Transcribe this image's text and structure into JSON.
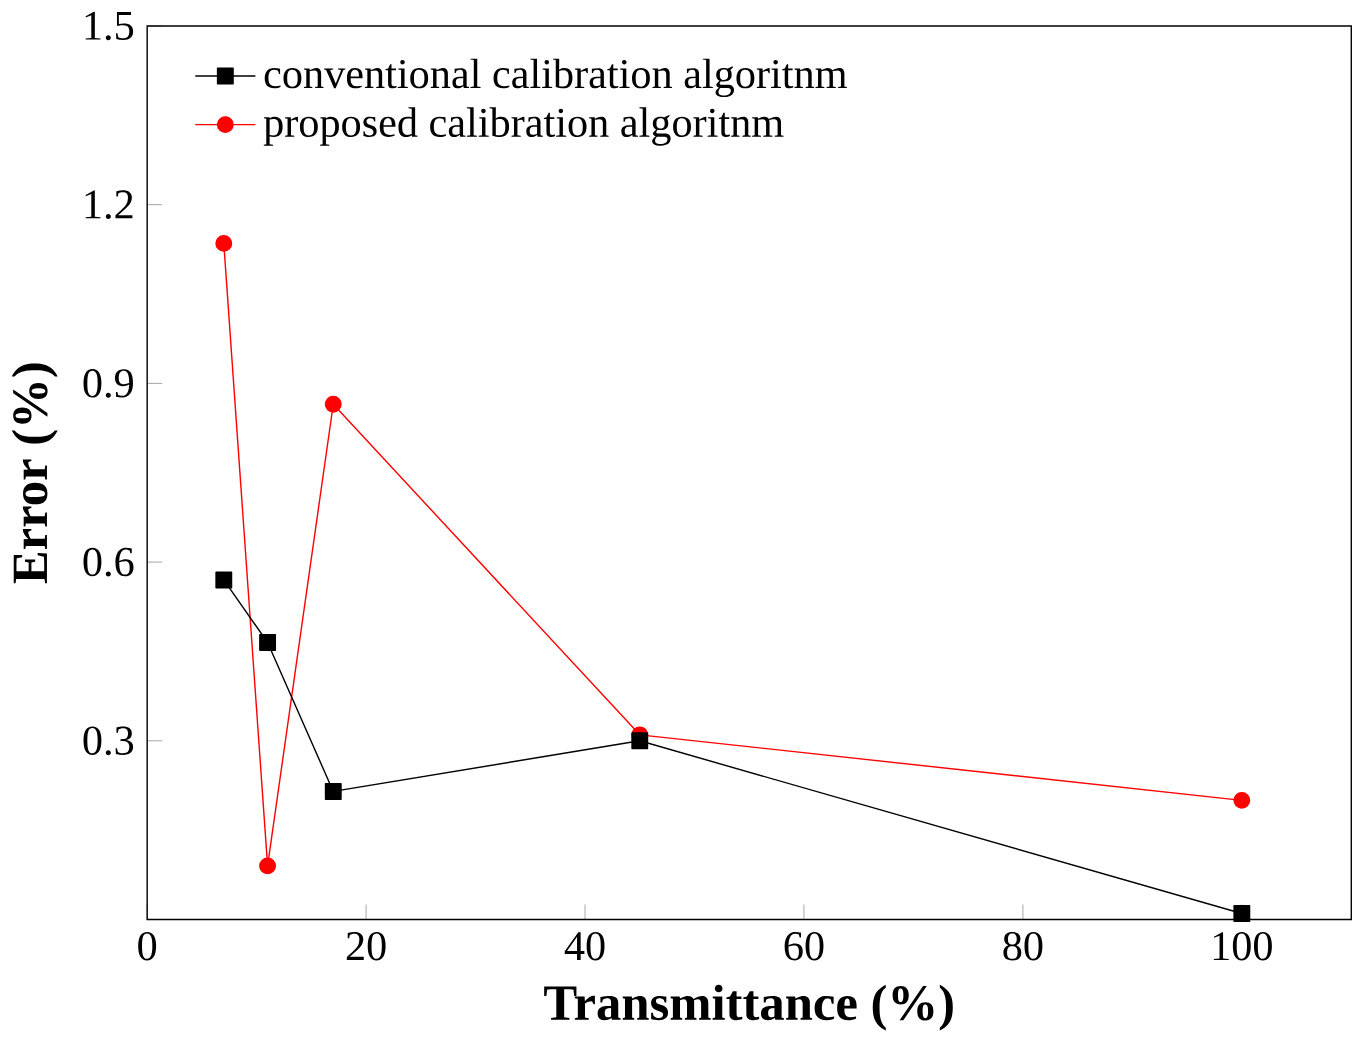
{
  "chart_data": {
    "type": "line",
    "xlabel": "Transmittance (%)",
    "ylabel": "Error (%)",
    "xlim": [
      0,
      110
    ],
    "ylim": [
      0,
      1.5
    ],
    "xticks": [
      0,
      20,
      40,
      60,
      80,
      100
    ],
    "yticks": [
      0.3,
      0.6,
      0.9,
      1.2,
      1.5
    ],
    "legend": "top left",
    "grid": false,
    "series": [
      {
        "name": "conventional calibration algoritnm",
        "color": "#000000",
        "marker": "square",
        "x": [
          7,
          11,
          17,
          45,
          100
        ],
        "values": [
          0.57,
          0.465,
          0.215,
          0.3,
          0.01
        ]
      },
      {
        "name": "proposed calibration algoritnm",
        "color": "#ff0000",
        "marker": "circle",
        "x": [
          7,
          11,
          17,
          45,
          100
        ],
        "values": [
          1.135,
          0.09,
          0.865,
          0.31,
          0.2
        ]
      }
    ]
  }
}
